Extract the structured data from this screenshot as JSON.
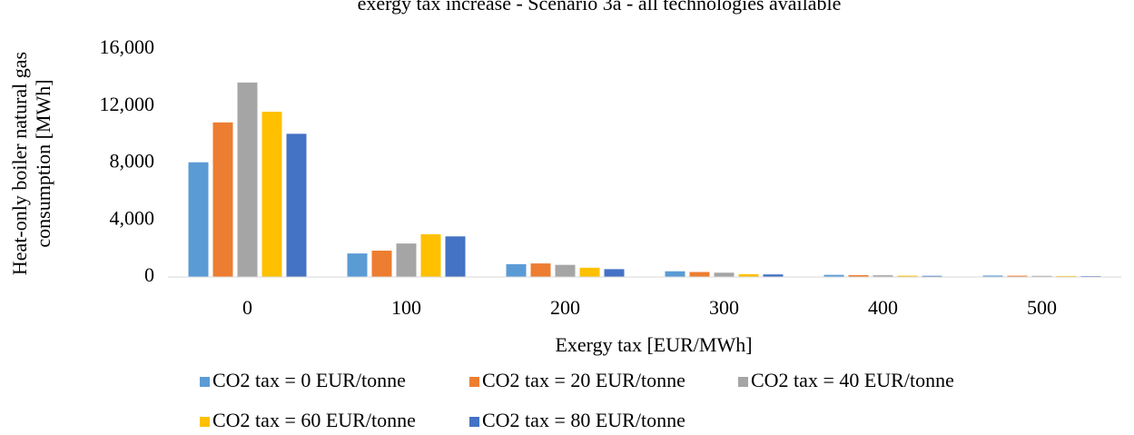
{
  "chart_data": {
    "type": "bar",
    "title": "exergy tax increase - Scenario 3a - all technologies available",
    "xlabel": "Exergy tax [EUR/MWh]",
    "ylabel": [
      "Heat-only boiler natural gas",
      "consumption [MWh]"
    ],
    "categories": [
      "0",
      "100",
      "200",
      "300",
      "400",
      "500"
    ],
    "series": [
      {
        "name": "CO2 tax = 0 EUR/tonne",
        "color": "#5b9bd5",
        "values": [
          8050,
          1650,
          900,
          400,
          150,
          100
        ]
      },
      {
        "name": "CO2 tax = 20 EUR/tonne",
        "color": "#ed7d31",
        "values": [
          10850,
          1850,
          950,
          350,
          130,
          90
        ]
      },
      {
        "name": "CO2 tax = 40 EUR/tonne",
        "color": "#a5a5a5",
        "values": [
          13650,
          2350,
          850,
          300,
          120,
          80
        ]
      },
      {
        "name": "CO2 tax = 60 EUR/tonne",
        "color": "#ffc000",
        "values": [
          11600,
          3000,
          650,
          200,
          90,
          70
        ]
      },
      {
        "name": "CO2 tax = 80 EUR/tonne",
        "color": "#4472c4",
        "values": [
          10050,
          2850,
          550,
          180,
          80,
          60
        ]
      }
    ],
    "ylim": [
      0,
      16000
    ],
    "yticks": [
      0,
      {
        "value": 4000,
        "label": "4,000"
      },
      {
        "value": 8000,
        "label": "8,000"
      },
      {
        "value": 12000,
        "label": "12,000"
      },
      {
        "value": 16000,
        "label": "16,000"
      }
    ],
    "grid": false,
    "legend": "bottom"
  }
}
